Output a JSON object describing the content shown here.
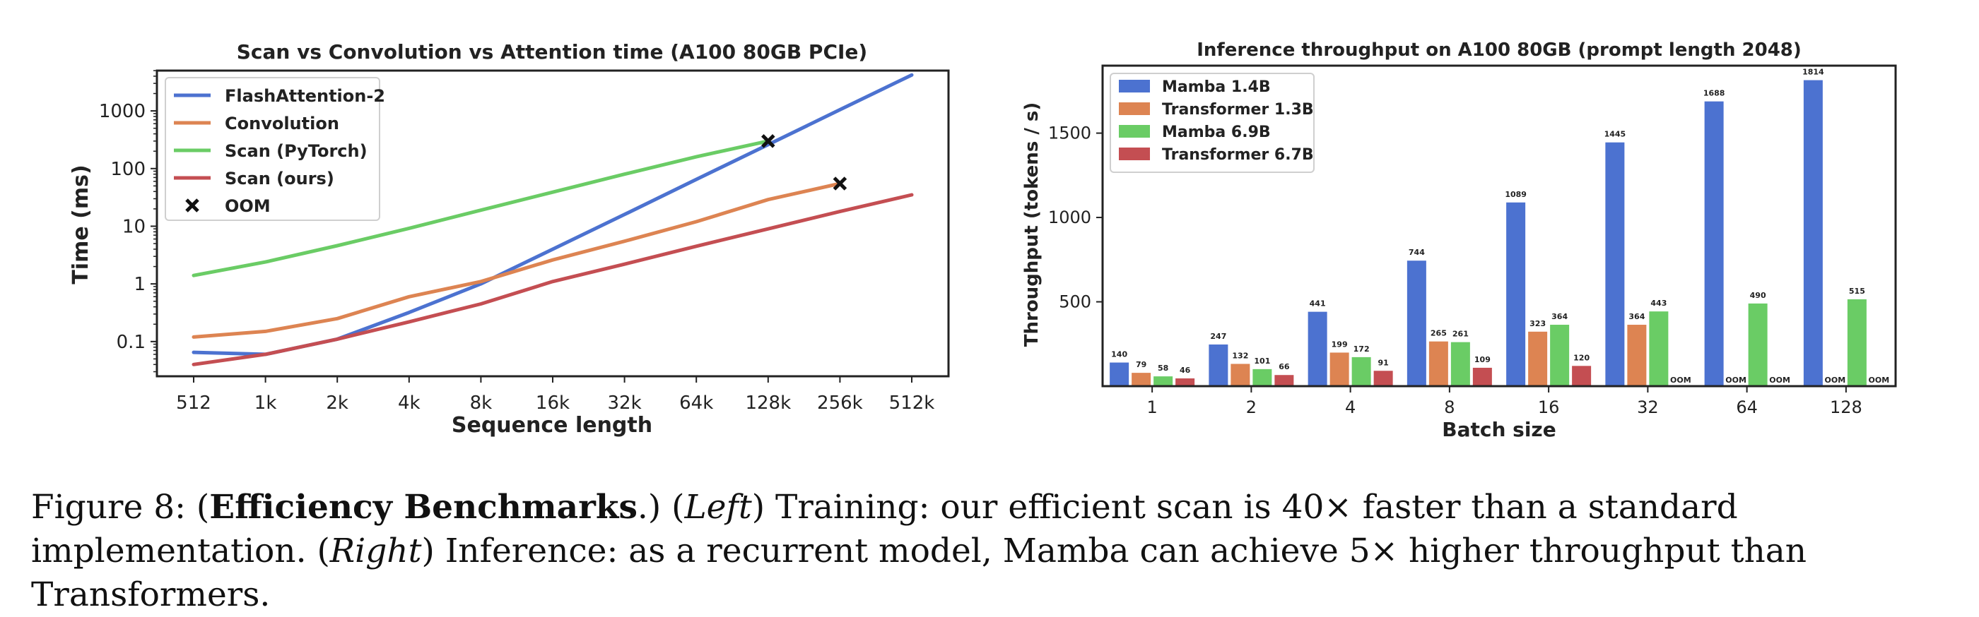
{
  "colors": {
    "blue": "#4c72d0",
    "orange": "#dd8452",
    "green": "#6acc65",
    "red": "#c44e52"
  },
  "chart_data": [
    {
      "type": "line",
      "title": "Scan vs Convolution vs Attention time (A100 80GB PCIe)",
      "xlabel": "Sequence length",
      "ylabel": "Time (ms)",
      "yscale": "log",
      "x": [
        "512",
        "1k",
        "2k",
        "4k",
        "8k",
        "16k",
        "32k",
        "64k",
        "128k",
        "256k",
        "512k"
      ],
      "ytick_labels": [
        "0.1",
        "1",
        "10",
        "100",
        "1000"
      ],
      "ylim": [
        0.025,
        5000
      ],
      "grid": false,
      "legend_position": "top-left",
      "series": [
        {
          "name": "FlashAttention-2",
          "color": "#4c72d0",
          "values": [
            0.065,
            0.06,
            0.11,
            0.32,
            1.0,
            4.0,
            16,
            65,
            260,
            1050,
            4200
          ]
        },
        {
          "name": "Convolution",
          "color": "#dd8452",
          "values": [
            0.12,
            0.15,
            0.25,
            0.6,
            1.1,
            2.6,
            5.5,
            12,
            29,
            55,
            null
          ]
        },
        {
          "name": "Scan (PyTorch)",
          "color": "#6acc65",
          "values": [
            1.4,
            2.4,
            4.6,
            9.2,
            19,
            39,
            80,
            160,
            300,
            null,
            null
          ]
        },
        {
          "name": "Scan (ours)",
          "color": "#c44e52",
          "values": [
            0.04,
            0.06,
            0.11,
            0.22,
            0.45,
            1.1,
            2.2,
            4.5,
            9,
            18,
            35
          ]
        }
      ],
      "oom": {
        "name": "OOM",
        "points": [
          {
            "x": "128k",
            "y": 300
          },
          {
            "x": "256k",
            "y": 55
          }
        ]
      }
    },
    {
      "type": "bar",
      "title": "Inference throughput on A100 80GB (prompt length 2048)",
      "xlabel": "Batch size",
      "ylabel": "Throughput (tokens / s)",
      "categories": [
        "1",
        "2",
        "4",
        "8",
        "16",
        "32",
        "64",
        "128"
      ],
      "ytick_labels": [
        "500",
        "1000",
        "1500"
      ],
      "ylim": [
        0,
        1900
      ],
      "legend_position": "top-left",
      "oom_label": "OOM",
      "series": [
        {
          "name": "Mamba 1.4B",
          "color": "#4c72d0",
          "values": [
            140,
            247,
            441,
            744,
            1089,
            1445,
            1688,
            1814
          ],
          "labels": [
            "140",
            "247",
            "441",
            "744",
            "1089",
            "1445",
            "1688",
            "1814"
          ]
        },
        {
          "name": "Transformer 1.3B",
          "color": "#dd8452",
          "values": [
            79,
            132,
            199,
            265,
            323,
            364,
            null,
            null
          ],
          "labels": [
            "79",
            "132",
            "199",
            "265",
            "323",
            "364",
            "OOM",
            "OOM"
          ]
        },
        {
          "name": "Mamba 6.9B",
          "color": "#6acc65",
          "values": [
            58,
            101,
            172,
            261,
            364,
            443,
            490,
            515
          ],
          "labels": [
            "58",
            "101",
            "172",
            "261",
            "364",
            "443",
            "490",
            "515"
          ]
        },
        {
          "name": "Transformer 6.7B",
          "color": "#c44e52",
          "values": [
            46,
            66,
            91,
            109,
            120,
            null,
            null,
            null
          ],
          "labels": [
            "46",
            "66",
            "91",
            "109",
            "120",
            "OOM",
            "OOM",
            "OOM"
          ]
        }
      ]
    }
  ],
  "caption": {
    "prefix": "Figure 8: (",
    "bold": "Efficiency Benchmarks",
    "mid1": ".) (",
    "italic1": "Left",
    "mid2": ") Training: our efficient scan is 40× faster than a standard implementation. (",
    "italic2": "Right",
    "mid3": ") Inference: as a recurrent model, Mamba can achieve 5× higher throughput than Transformers."
  }
}
